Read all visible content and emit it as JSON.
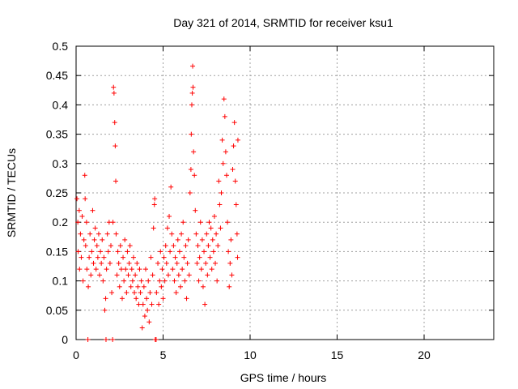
{
  "chart_data": {
    "type": "scatter",
    "title": "Day 321 of 2014, SRMTID for receiver ksu1",
    "xlabel": "GPS time / hours",
    "ylabel": "SRMTID / TECUs",
    "xlim": [
      0,
      24
    ],
    "ylim": [
      0,
      0.5
    ],
    "x_ticks": [
      0,
      5,
      10,
      15,
      20
    ],
    "x_tick_labels": [
      "0",
      "5",
      "10",
      "15",
      "20"
    ],
    "y_ticks": [
      0,
      0.05,
      0.1,
      0.15,
      0.2,
      0.25,
      0.3,
      0.35,
      0.4,
      0.45,
      0.5
    ],
    "y_tick_labels": [
      "0",
      "0.05",
      "0.1",
      "0.15",
      "0.2",
      "0.25",
      "0.3",
      "0.35",
      "0.4",
      "0.45",
      "0.5"
    ],
    "grid": true,
    "marker": "+",
    "color": "#ff0000",
    "series": [
      {
        "name": "SRMTID",
        "points": [
          [
            0.05,
            0.24
          ],
          [
            0.1,
            0.2
          ],
          [
            0.12,
            0.15
          ],
          [
            0.18,
            0.22
          ],
          [
            0.2,
            0.12
          ],
          [
            0.25,
            0.18
          ],
          [
            0.3,
            0.14
          ],
          [
            0.35,
            0.21
          ],
          [
            0.4,
            0.1
          ],
          [
            0.45,
            0.17
          ],
          [
            0.5,
            0.28
          ],
          [
            0.52,
            0.24
          ],
          [
            0.55,
            0.16
          ],
          [
            0.6,
            0.2
          ],
          [
            0.62,
            0.12
          ],
          [
            0.68,
            0.0
          ],
          [
            0.7,
            0.09
          ],
          [
            0.75,
            0.14
          ],
          [
            0.8,
            0.18
          ],
          [
            0.85,
            0.11
          ],
          [
            0.9,
            0.15
          ],
          [
            0.95,
            0.22
          ],
          [
            1.0,
            0.13
          ],
          [
            1.05,
            0.17
          ],
          [
            1.1,
            0.19
          ],
          [
            1.15,
            0.12
          ],
          [
            1.2,
            0.16
          ],
          [
            1.25,
            0.14
          ],
          [
            1.3,
            0.18
          ],
          [
            1.35,
            0.11
          ],
          [
            1.4,
            0.15
          ],
          [
            1.45,
            0.13
          ],
          [
            1.5,
            0.17
          ],
          [
            1.55,
            0.1
          ],
          [
            1.6,
            0.14
          ],
          [
            1.65,
            0.05
          ],
          [
            1.7,
            0.07
          ],
          [
            1.72,
            0.0
          ],
          [
            1.75,
            0.12
          ],
          [
            1.8,
            0.18
          ],
          [
            1.85,
            0.15
          ],
          [
            1.9,
            0.2
          ],
          [
            1.95,
            0.13
          ],
          [
            2.0,
            0.16
          ],
          [
            2.05,
            0.08
          ],
          [
            2.1,
            0.0
          ],
          [
            2.12,
            0.2
          ],
          [
            2.15,
            0.43
          ],
          [
            2.18,
            0.42
          ],
          [
            2.22,
            0.37
          ],
          [
            2.25,
            0.33
          ],
          [
            2.28,
            0.27
          ],
          [
            2.3,
            0.18
          ],
          [
            2.35,
            0.11
          ],
          [
            2.4,
            0.15
          ],
          [
            2.45,
            0.13
          ],
          [
            2.5,
            0.09
          ],
          [
            2.55,
            0.16
          ],
          [
            2.6,
            0.12
          ],
          [
            2.65,
            0.07
          ],
          [
            2.7,
            0.14
          ],
          [
            2.75,
            0.1
          ],
          [
            2.8,
            0.17
          ],
          [
            2.85,
            0.12
          ],
          [
            2.9,
            0.08
          ],
          [
            2.95,
            0.15
          ],
          [
            3.0,
            0.11
          ],
          [
            3.05,
            0.13
          ],
          [
            3.1,
            0.16
          ],
          [
            3.15,
            0.09
          ],
          [
            3.2,
            0.12
          ],
          [
            3.25,
            0.1
          ],
          [
            3.3,
            0.14
          ],
          [
            3.35,
            0.08
          ],
          [
            3.4,
            0.11
          ],
          [
            3.45,
            0.07
          ],
          [
            3.5,
            0.13
          ],
          [
            3.55,
            0.09
          ],
          [
            3.6,
            0.06
          ],
          [
            3.65,
            0.12
          ],
          [
            3.7,
            0.08
          ],
          [
            3.75,
            0.1
          ],
          [
            3.8,
            0.02
          ],
          [
            3.85,
            0.06
          ],
          [
            3.9,
            0.09
          ],
          [
            3.95,
            0.04
          ],
          [
            4.0,
            0.12
          ],
          [
            4.05,
            0.07
          ],
          [
            4.1,
            0.05
          ],
          [
            4.15,
            0.1
          ],
          [
            4.2,
            0.03
          ],
          [
            4.25,
            0.08
          ],
          [
            4.3,
            0.14
          ],
          [
            4.35,
            0.06
          ],
          [
            4.4,
            0.11
          ],
          [
            4.45,
            0.19
          ],
          [
            4.5,
            0.23
          ],
          [
            4.52,
            0.24
          ],
          [
            4.55,
            0.0
          ],
          [
            4.6,
            0.0
          ],
          [
            4.62,
            0.08
          ],
          [
            4.7,
            0.13
          ],
          [
            4.75,
            0.06
          ],
          [
            4.8,
            0.1
          ],
          [
            4.85,
            0.15
          ],
          [
            4.9,
            0.09
          ],
          [
            4.95,
            0.12
          ],
          [
            5.0,
            0.07
          ],
          [
            5.05,
            0.14
          ],
          [
            5.1,
            0.1
          ],
          [
            5.15,
            0.16
          ],
          [
            5.2,
            0.13
          ],
          [
            5.25,
            0.19
          ],
          [
            5.3,
            0.11
          ],
          [
            5.35,
            0.21
          ],
          [
            5.4,
            0.15
          ],
          [
            5.45,
            0.26
          ],
          [
            5.5,
            0.18
          ],
          [
            5.55,
            0.12
          ],
          [
            5.6,
            0.16
          ],
          [
            5.65,
            0.1
          ],
          [
            5.7,
            0.14
          ],
          [
            5.75,
            0.08
          ],
          [
            5.8,
            0.13
          ],
          [
            5.85,
            0.17
          ],
          [
            5.9,
            0.11
          ],
          [
            5.95,
            0.15
          ],
          [
            6.0,
            0.09
          ],
          [
            6.05,
            0.18
          ],
          [
            6.1,
            0.12
          ],
          [
            6.15,
            0.2
          ],
          [
            6.2,
            0.14
          ],
          [
            6.25,
            0.1
          ],
          [
            6.3,
            0.16
          ],
          [
            6.35,
            0.07
          ],
          [
            6.4,
            0.13
          ],
          [
            6.45,
            0.17
          ],
          [
            6.5,
            0.11
          ],
          [
            6.55,
            0.25
          ],
          [
            6.6,
            0.29
          ],
          [
            6.62,
            0.35
          ],
          [
            6.65,
            0.4
          ],
          [
            6.68,
            0.42
          ],
          [
            6.7,
            0.466
          ],
          [
            6.72,
            0.43
          ],
          [
            6.75,
            0.32
          ],
          [
            6.8,
            0.28
          ],
          [
            6.85,
            0.22
          ],
          [
            6.9,
            0.18
          ],
          [
            6.95,
            0.13
          ],
          [
            7.0,
            0.16
          ],
          [
            7.05,
            0.1
          ],
          [
            7.1,
            0.14
          ],
          [
            7.15,
            0.2
          ],
          [
            7.2,
            0.12
          ],
          [
            7.25,
            0.17
          ],
          [
            7.3,
            0.09
          ],
          [
            7.35,
            0.15
          ],
          [
            7.4,
            0.06
          ],
          [
            7.45,
            0.13
          ],
          [
            7.5,
            0.18
          ],
          [
            7.55,
            0.11
          ],
          [
            7.6,
            0.16
          ],
          [
            7.65,
            0.2
          ],
          [
            7.7,
            0.14
          ],
          [
            7.75,
            0.19
          ],
          [
            7.8,
            0.12
          ],
          [
            7.85,
            0.17
          ],
          [
            7.9,
            0.15
          ],
          [
            7.95,
            0.21
          ],
          [
            8.0,
            0.13
          ],
          [
            8.05,
            0.18
          ],
          [
            8.1,
            0.1
          ],
          [
            8.15,
            0.16
          ],
          [
            8.2,
            0.27
          ],
          [
            8.25,
            0.23
          ],
          [
            8.3,
            0.19
          ],
          [
            8.35,
            0.25
          ],
          [
            8.4,
            0.34
          ],
          [
            8.45,
            0.3
          ],
          [
            8.5,
            0.41
          ],
          [
            8.55,
            0.38
          ],
          [
            8.6,
            0.32
          ],
          [
            8.65,
            0.28
          ],
          [
            8.7,
            0.2
          ],
          [
            8.75,
            0.15
          ],
          [
            8.8,
            0.09
          ],
          [
            8.85,
            0.13
          ],
          [
            8.9,
            0.17
          ],
          [
            8.95,
            0.11
          ],
          [
            9.0,
            0.29
          ],
          [
            9.05,
            0.33
          ],
          [
            9.1,
            0.37
          ],
          [
            9.15,
            0.27
          ],
          [
            9.2,
            0.23
          ],
          [
            9.25,
            0.18
          ],
          [
            9.28,
            0.14
          ],
          [
            9.3,
            0.34
          ]
        ]
      }
    ]
  }
}
